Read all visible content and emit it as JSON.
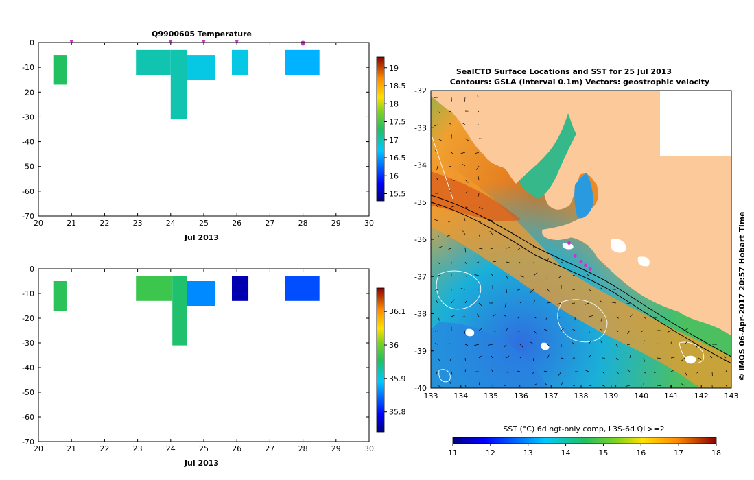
{
  "chart_data": [
    {
      "type": "heatmap",
      "title": "Q9900605  Temperature",
      "xlabel": "Jul 2013",
      "ylabel": "",
      "xlim": [
        20,
        30
      ],
      "ylim": [
        -70,
        0
      ],
      "x_ticks": [
        20,
        21,
        22,
        23,
        24,
        25,
        26,
        27,
        28,
        29,
        30
      ],
      "y_ticks": [
        0,
        -10,
        -20,
        -30,
        -40,
        -50,
        -60,
        -70
      ],
      "surface_markers_day": [
        21,
        24,
        25,
        26,
        28
      ],
      "cells": [
        {
          "x0": 20.45,
          "x1": 20.85,
          "y0": -5,
          "y1": -17,
          "value": 17.3
        },
        {
          "x0": 22.95,
          "x1": 24.0,
          "y0": -3,
          "y1": -13,
          "value": 17.0
        },
        {
          "x0": 24.0,
          "x1": 24.5,
          "y0": -3,
          "y1": -31,
          "value": 17.0
        },
        {
          "x0": 24.5,
          "x1": 25.35,
          "y0": -5,
          "y1": -15,
          "value": 16.8
        },
        {
          "x0": 25.85,
          "x1": 26.35,
          "y0": -3,
          "y1": -13,
          "value": 16.8
        },
        {
          "x0": 27.45,
          "x1": 28.5,
          "y0": -3,
          "y1": -13,
          "value": 16.6
        }
      ],
      "colorbar": {
        "min": 15.3,
        "max": 19.3,
        "ticks": [
          15.5,
          16,
          16.5,
          17,
          17.5,
          18,
          18.5,
          19
        ]
      }
    },
    {
      "type": "heatmap",
      "title": "",
      "xlabel": "Jul 2013",
      "ylabel": "",
      "xlim": [
        20,
        30
      ],
      "ylim": [
        -70,
        0
      ],
      "x_ticks": [
        20,
        21,
        22,
        23,
        24,
        25,
        26,
        27,
        28,
        29,
        30
      ],
      "y_ticks": [
        0,
        -10,
        -20,
        -30,
        -40,
        -50,
        -60,
        -70
      ],
      "cells": [
        {
          "x0": 20.45,
          "x1": 20.85,
          "y0": -5,
          "y1": -17,
          "value": 35.96
        },
        {
          "x0": 22.95,
          "x1": 24.05,
          "y0": -3,
          "y1": -13,
          "value": 35.97
        },
        {
          "x0": 24.05,
          "x1": 24.5,
          "y0": -3,
          "y1": -31,
          "value": 35.95
        },
        {
          "x0": 24.5,
          "x1": 25.35,
          "y0": -5,
          "y1": -15,
          "value": 35.86
        },
        {
          "x0": 25.85,
          "x1": 26.35,
          "y0": -3,
          "y1": -13,
          "value": 35.76
        },
        {
          "x0": 27.45,
          "x1": 28.5,
          "y0": -3,
          "y1": -13,
          "value": 35.83
        }
      ],
      "colorbar": {
        "min": 35.74,
        "max": 36.17,
        "ticks": [
          35.8,
          35.9,
          36,
          36.1
        ]
      }
    },
    {
      "type": "map",
      "title": "SealCTD Surface Locations and SST for 25 Jul 2013",
      "subtitle": "Contours: GSLA (interval 0.1m) Vectors: geostrophic velocity",
      "xlim": [
        133,
        143
      ],
      "ylim": [
        -40,
        -32
      ],
      "x_ticks": [
        133,
        134,
        135,
        136,
        137,
        138,
        139,
        140,
        141,
        142,
        143
      ],
      "y_ticks": [
        -32,
        -33,
        -34,
        -35,
        -36,
        -37,
        -38,
        -39,
        -40
      ],
      "colorbar": {
        "label": "SST (°C) 6d ngt-only comp, L3S-6d QL>=2",
        "min": 11,
        "max": 18,
        "ticks": [
          11,
          12,
          13,
          14,
          15,
          16,
          17,
          18
        ]
      },
      "seal_locations": [
        {
          "lon": 137.6,
          "lat": -36.1
        },
        {
          "lon": 137.8,
          "lat": -36.45
        },
        {
          "lon": 138.0,
          "lat": -36.6
        },
        {
          "lon": 138.15,
          "lat": -36.7
        },
        {
          "lon": 138.3,
          "lat": -36.8
        }
      ]
    }
  ],
  "credit": "© IMOS 06-Apr-2017 20:57 Hobart Time",
  "colors": {
    "marker": "#cc33cc",
    "land": "#fbc99a"
  }
}
